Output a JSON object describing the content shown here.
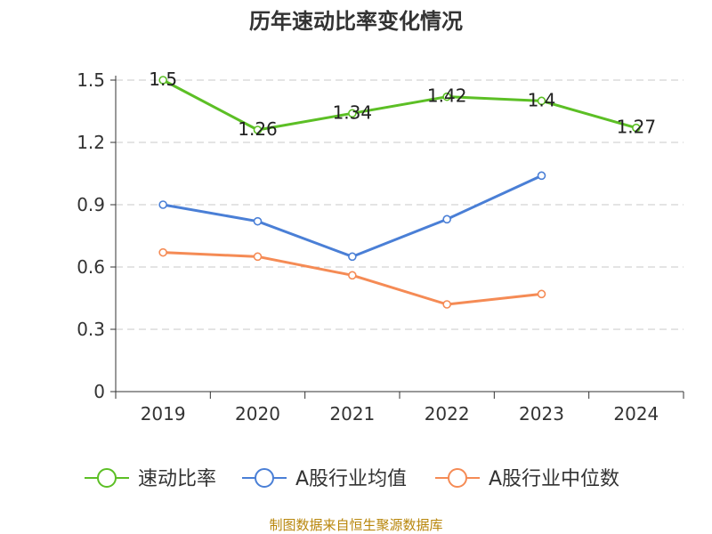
{
  "chart_data": {
    "type": "line",
    "title": "历年速动比率变化情况",
    "categories": [
      "2019",
      "2020",
      "2021",
      "2022",
      "2023",
      "2024"
    ],
    "yticks": [
      "0",
      "0.3",
      "0.6",
      "0.9",
      "1.2",
      "1.5"
    ],
    "ylim": [
      0,
      1.5
    ],
    "grid": true,
    "legend_position": "bottom",
    "series": [
      {
        "name": "速动比率",
        "color": "#5cbf25",
        "values": [
          1.5,
          1.26,
          1.34,
          1.42,
          1.4,
          1.27
        ],
        "labels": [
          "1.5",
          "1.26",
          "1.34",
          "1.42",
          "1.4",
          "1.27"
        ],
        "show_labels": true
      },
      {
        "name": "A股行业均值",
        "color": "#4a7fd6",
        "values": [
          0.9,
          0.82,
          0.65,
          0.83,
          1.04,
          null
        ],
        "show_labels": false
      },
      {
        "name": "A股行业中位数",
        "color": "#f58b55",
        "values": [
          0.67,
          0.65,
          0.56,
          0.42,
          0.47,
          null
        ],
        "show_labels": false
      }
    ]
  },
  "footer": {
    "source": "制图数据来自恒生聚源数据库"
  }
}
